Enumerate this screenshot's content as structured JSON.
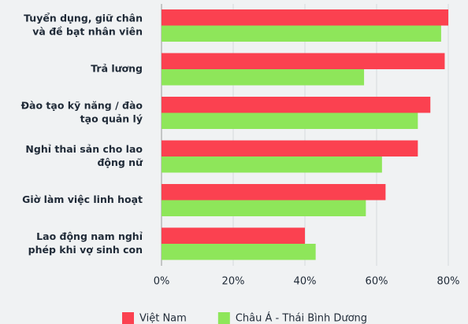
{
  "chart_data": {
    "type": "hbar",
    "categories": [
      [
        "Tuyển dụng, giữ chân",
        "và đề bạt nhân viên"
      ],
      [
        "Trả lương"
      ],
      [
        "Đào tạo kỹ năng / đào",
        "tạo quản lý"
      ],
      [
        "Nghỉ thai sản cho lao",
        "động nữ"
      ],
      [
        "Giờ làm việc linh hoạt"
      ],
      [
        "Lao động nam nghỉ",
        "phép khi vợ sinh con"
      ]
    ],
    "series": [
      {
        "name": "Việt Nam",
        "color": "#fb4150",
        "values": [
          80,
          79,
          75,
          71.5,
          62.5,
          40
        ]
      },
      {
        "name": "Châu Á - Thái Bình Dương",
        "color": "#8ee65a",
        "values": [
          78,
          56.5,
          71.5,
          61.5,
          57,
          43
        ]
      }
    ],
    "xlim": [
      0,
      80
    ],
    "xticks": [
      {
        "value": 0,
        "label": "0%"
      },
      {
        "value": 20,
        "label": "20%"
      },
      {
        "value": 40,
        "label": "40%"
      },
      {
        "value": 60,
        "label": "60%"
      },
      {
        "value": 80,
        "label": "80%"
      }
    ],
    "grid": true,
    "legend": "bottom"
  }
}
